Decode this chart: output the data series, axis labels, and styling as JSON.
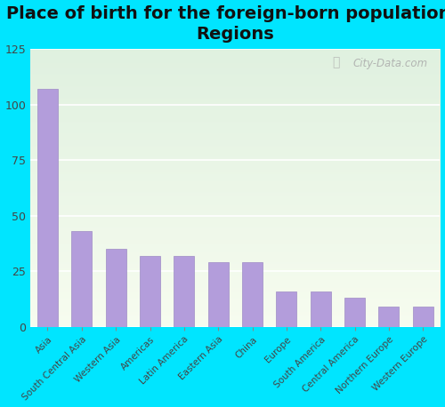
{
  "title": "Place of birth for the foreign-born population -\nRegions",
  "categories": [
    "Asia",
    "South Central Asia",
    "Western Asia",
    "Americas",
    "Latin America",
    "Eastern Asia",
    "China",
    "Europe",
    "South America",
    "Central America",
    "Northern Europe",
    "Western Europe"
  ],
  "values": [
    107,
    43,
    35,
    32,
    32,
    29,
    29,
    16,
    16,
    13,
    9,
    9
  ],
  "bar_color": "#b39ddb",
  "bar_edge_color": "#9e8cc5",
  "bg_color": "#00e5ff",
  "ylim": [
    0,
    125
  ],
  "yticks": [
    0,
    25,
    50,
    75,
    100,
    125
  ],
  "title_fontsize": 14,
  "watermark": "City-Data.com"
}
